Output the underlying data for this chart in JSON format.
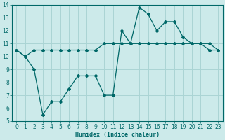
{
  "xlabel": "Humidex (Indice chaleur)",
  "ylabel": "",
  "bg_color": "#cceaea",
  "grid_color": "#aad4d4",
  "line_color": "#006868",
  "xlim": [
    -0.5,
    23.5
  ],
  "ylim": [
    5,
    14
  ],
  "xticks": [
    0,
    1,
    2,
    3,
    4,
    5,
    6,
    7,
    8,
    9,
    10,
    11,
    12,
    13,
    14,
    15,
    16,
    17,
    18,
    19,
    20,
    21,
    22,
    23
  ],
  "yticks": [
    5,
    6,
    7,
    8,
    9,
    10,
    11,
    12,
    13,
    14
  ],
  "line1_x": [
    0,
    1,
    2,
    3,
    4,
    5,
    6,
    7,
    8,
    9,
    10,
    11,
    12,
    13,
    14,
    15,
    16,
    17,
    18,
    19,
    20,
    21,
    22,
    23
  ],
  "line1_y": [
    10.5,
    10.0,
    10.5,
    10.5,
    10.5,
    10.5,
    10.5,
    10.5,
    10.5,
    10.5,
    11.0,
    11.0,
    11.0,
    11.0,
    11.0,
    11.0,
    11.0,
    11.0,
    11.0,
    11.0,
    11.0,
    11.0,
    11.0,
    10.5
  ],
  "line2_x": [
    0,
    1,
    2,
    3,
    4,
    5,
    6,
    7,
    8,
    9,
    10,
    11,
    12,
    13,
    14,
    15,
    16,
    17,
    18,
    19,
    20,
    21,
    22,
    23
  ],
  "line2_y": [
    10.5,
    10.0,
    9.0,
    5.5,
    6.5,
    6.5,
    7.5,
    8.5,
    8.5,
    8.5,
    7.0,
    7.0,
    12.0,
    11.0,
    13.8,
    13.3,
    12.0,
    12.7,
    12.7,
    11.5,
    11.0,
    11.0,
    10.5,
    10.5
  ]
}
